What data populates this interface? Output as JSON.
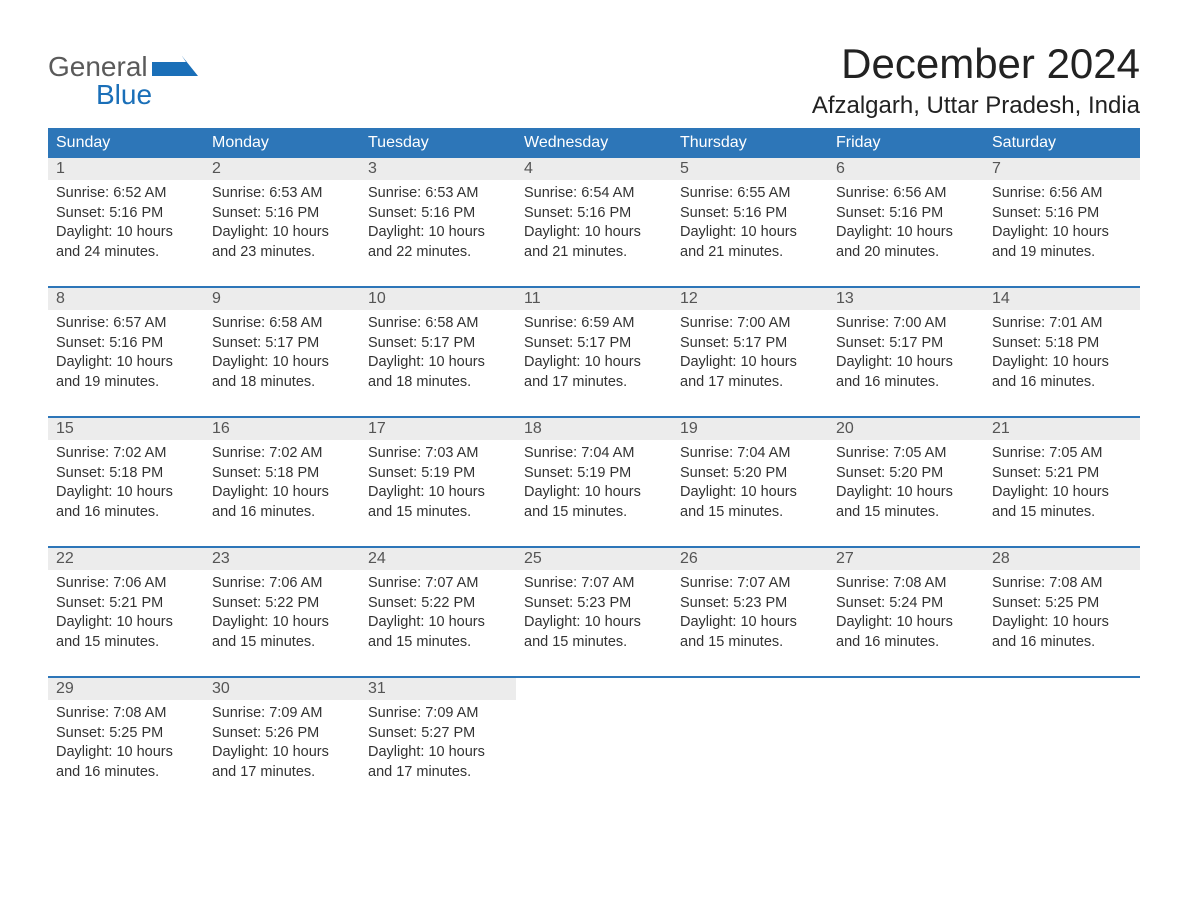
{
  "logo": {
    "text1": "General",
    "text2": "Blue",
    "icon_color": "#1a6fb8"
  },
  "title": "December 2024",
  "location": "Afzalgarh, Uttar Pradesh, India",
  "colors": {
    "header_bg": "#2d76b8",
    "header_text": "#ffffff",
    "daynum_bg": "#ececec",
    "daynum_text": "#555555",
    "body_text": "#333333",
    "week_border": "#2d76b8"
  },
  "weekdays": [
    "Sunday",
    "Monday",
    "Tuesday",
    "Wednesday",
    "Thursday",
    "Friday",
    "Saturday"
  ],
  "weeks": [
    [
      {
        "day": "1",
        "sunrise": "6:52 AM",
        "sunset": "5:16 PM",
        "daylight": "10 hours and 24 minutes."
      },
      {
        "day": "2",
        "sunrise": "6:53 AM",
        "sunset": "5:16 PM",
        "daylight": "10 hours and 23 minutes."
      },
      {
        "day": "3",
        "sunrise": "6:53 AM",
        "sunset": "5:16 PM",
        "daylight": "10 hours and 22 minutes."
      },
      {
        "day": "4",
        "sunrise": "6:54 AM",
        "sunset": "5:16 PM",
        "daylight": "10 hours and 21 minutes."
      },
      {
        "day": "5",
        "sunrise": "6:55 AM",
        "sunset": "5:16 PM",
        "daylight": "10 hours and 21 minutes."
      },
      {
        "day": "6",
        "sunrise": "6:56 AM",
        "sunset": "5:16 PM",
        "daylight": "10 hours and 20 minutes."
      },
      {
        "day": "7",
        "sunrise": "6:56 AM",
        "sunset": "5:16 PM",
        "daylight": "10 hours and 19 minutes."
      }
    ],
    [
      {
        "day": "8",
        "sunrise": "6:57 AM",
        "sunset": "5:16 PM",
        "daylight": "10 hours and 19 minutes."
      },
      {
        "day": "9",
        "sunrise": "6:58 AM",
        "sunset": "5:17 PM",
        "daylight": "10 hours and 18 minutes."
      },
      {
        "day": "10",
        "sunrise": "6:58 AM",
        "sunset": "5:17 PM",
        "daylight": "10 hours and 18 minutes."
      },
      {
        "day": "11",
        "sunrise": "6:59 AM",
        "sunset": "5:17 PM",
        "daylight": "10 hours and 17 minutes."
      },
      {
        "day": "12",
        "sunrise": "7:00 AM",
        "sunset": "5:17 PM",
        "daylight": "10 hours and 17 minutes."
      },
      {
        "day": "13",
        "sunrise": "7:00 AM",
        "sunset": "5:17 PM",
        "daylight": "10 hours and 16 minutes."
      },
      {
        "day": "14",
        "sunrise": "7:01 AM",
        "sunset": "5:18 PM",
        "daylight": "10 hours and 16 minutes."
      }
    ],
    [
      {
        "day": "15",
        "sunrise": "7:02 AM",
        "sunset": "5:18 PM",
        "daylight": "10 hours and 16 minutes."
      },
      {
        "day": "16",
        "sunrise": "7:02 AM",
        "sunset": "5:18 PM",
        "daylight": "10 hours and 16 minutes."
      },
      {
        "day": "17",
        "sunrise": "7:03 AM",
        "sunset": "5:19 PM",
        "daylight": "10 hours and 15 minutes."
      },
      {
        "day": "18",
        "sunrise": "7:04 AM",
        "sunset": "5:19 PM",
        "daylight": "10 hours and 15 minutes."
      },
      {
        "day": "19",
        "sunrise": "7:04 AM",
        "sunset": "5:20 PM",
        "daylight": "10 hours and 15 minutes."
      },
      {
        "day": "20",
        "sunrise": "7:05 AM",
        "sunset": "5:20 PM",
        "daylight": "10 hours and 15 minutes."
      },
      {
        "day": "21",
        "sunrise": "7:05 AM",
        "sunset": "5:21 PM",
        "daylight": "10 hours and 15 minutes."
      }
    ],
    [
      {
        "day": "22",
        "sunrise": "7:06 AM",
        "sunset": "5:21 PM",
        "daylight": "10 hours and 15 minutes."
      },
      {
        "day": "23",
        "sunrise": "7:06 AM",
        "sunset": "5:22 PM",
        "daylight": "10 hours and 15 minutes."
      },
      {
        "day": "24",
        "sunrise": "7:07 AM",
        "sunset": "5:22 PM",
        "daylight": "10 hours and 15 minutes."
      },
      {
        "day": "25",
        "sunrise": "7:07 AM",
        "sunset": "5:23 PM",
        "daylight": "10 hours and 15 minutes."
      },
      {
        "day": "26",
        "sunrise": "7:07 AM",
        "sunset": "5:23 PM",
        "daylight": "10 hours and 15 minutes."
      },
      {
        "day": "27",
        "sunrise": "7:08 AM",
        "sunset": "5:24 PM",
        "daylight": "10 hours and 16 minutes."
      },
      {
        "day": "28",
        "sunrise": "7:08 AM",
        "sunset": "5:25 PM",
        "daylight": "10 hours and 16 minutes."
      }
    ],
    [
      {
        "day": "29",
        "sunrise": "7:08 AM",
        "sunset": "5:25 PM",
        "daylight": "10 hours and 16 minutes."
      },
      {
        "day": "30",
        "sunrise": "7:09 AM",
        "sunset": "5:26 PM",
        "daylight": "10 hours and 17 minutes."
      },
      {
        "day": "31",
        "sunrise": "7:09 AM",
        "sunset": "5:27 PM",
        "daylight": "10 hours and 17 minutes."
      },
      null,
      null,
      null,
      null
    ]
  ],
  "labels": {
    "sunrise": "Sunrise: ",
    "sunset": "Sunset: ",
    "daylight": "Daylight: "
  }
}
